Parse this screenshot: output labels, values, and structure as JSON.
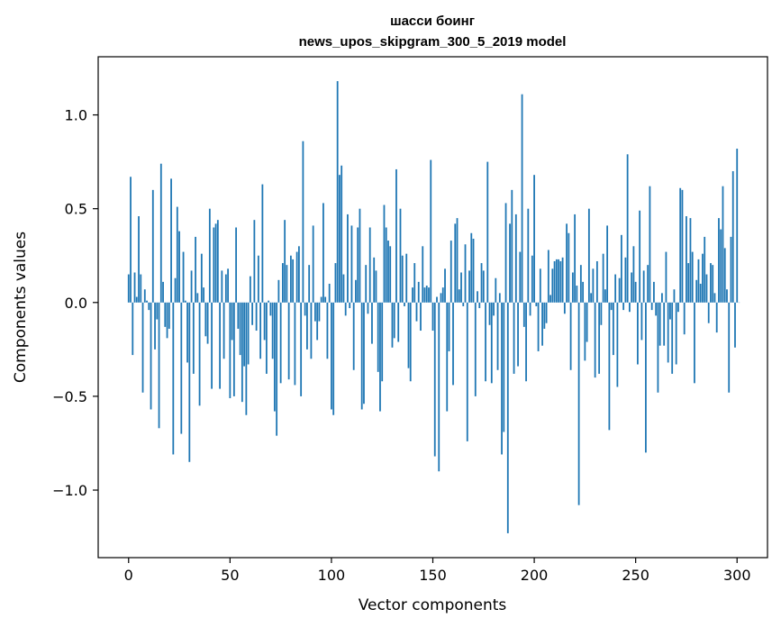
{
  "chart_data": {
    "type": "bar",
    "title_line1": "шасси боинг",
    "title_line2": "news_upos_skipgram_300_5_2019 model",
    "xlabel": "Vector components",
    "ylabel": "Components values",
    "xlim": [
      -15,
      315
    ],
    "ylim": [
      -1.36,
      1.31
    ],
    "xticks": [
      0,
      50,
      100,
      150,
      200,
      250,
      300
    ],
    "yticks": [
      -1.0,
      -0.5,
      0.0,
      0.5,
      1.0
    ],
    "xtick_labels": [
      "0",
      "50",
      "100",
      "150",
      "200",
      "250",
      "300"
    ],
    "ytick_labels": [
      "−1.0",
      "−0.5",
      "0.0",
      "0.5",
      "1.0"
    ],
    "bar_color": "#1f77b4",
    "values": [
      0.15,
      0.67,
      -0.28,
      0.16,
      0.03,
      0.46,
      0.15,
      -0.48,
      0.07,
      0.01,
      -0.04,
      -0.57,
      0.6,
      -0.25,
      -0.09,
      -0.67,
      0.74,
      0.11,
      -0.13,
      -0.19,
      -0.14,
      0.66,
      -0.81,
      0.13,
      0.51,
      0.38,
      -0.7,
      0.27,
      0.01,
      -0.32,
      -0.85,
      0.17,
      -0.38,
      0.35,
      0.05,
      -0.55,
      0.26,
      0.08,
      -0.18,
      -0.22,
      0.5,
      -0.46,
      0.4,
      0.42,
      0.44,
      -0.46,
      0.17,
      -0.3,
      0.15,
      0.18,
      -0.51,
      -0.2,
      -0.5,
      0.4,
      -0.14,
      -0.28,
      -0.53,
      -0.34,
      -0.6,
      -0.33,
      0.14,
      -0.12,
      0.44,
      -0.15,
      0.25,
      -0.3,
      0.63,
      -0.2,
      -0.38,
      0.01,
      -0.07,
      -0.3,
      -0.58,
      -0.71,
      0.12,
      -0.43,
      0.21,
      0.44,
      0.2,
      -0.41,
      0.25,
      0.23,
      -0.44,
      0.27,
      0.3,
      -0.5,
      0.86,
      -0.07,
      -0.25,
      0.2,
      -0.3,
      0.41,
      -0.1,
      -0.2,
      -0.1,
      0.03,
      0.53,
      0.03,
      -0.3,
      0.1,
      -0.57,
      -0.6,
      0.21,
      1.18,
      0.68,
      0.73,
      0.15,
      -0.07,
      0.47,
      -0.03,
      0.41,
      -0.36,
      0.12,
      0.4,
      0.5,
      -0.57,
      -0.54,
      0.2,
      -0.06,
      0.4,
      -0.22,
      0.24,
      0.17,
      -0.37,
      -0.58,
      -0.42,
      0.52,
      0.4,
      0.33,
      0.3,
      -0.24,
      -0.19,
      0.71,
      -0.21,
      0.5,
      0.25,
      -0.02,
      0.26,
      -0.35,
      -0.42,
      0.08,
      0.21,
      -0.1,
      0.11,
      -0.15,
      0.3,
      0.08,
      0.09,
      0.08,
      0.76,
      -0.15,
      -0.82,
      0.03,
      -0.9,
      0.05,
      0.08,
      0.18,
      -0.58,
      -0.26,
      0.33,
      -0.44,
      0.42,
      0.45,
      0.07,
      0.16,
      -0.02,
      0.31,
      -0.74,
      0.17,
      0.37,
      0.34,
      -0.5,
      0.06,
      -0.03,
      0.21,
      0.17,
      -0.42,
      0.75,
      -0.12,
      -0.43,
      -0.07,
      0.13,
      -0.36,
      0.05,
      -0.81,
      -0.69,
      0.53,
      -1.23,
      0.42,
      0.6,
      -0.38,
      0.47,
      -0.34,
      0.27,
      1.11,
      -0.13,
      -0.42,
      0.5,
      -0.07,
      0.25,
      0.68,
      -0.02,
      -0.26,
      0.18,
      -0.23,
      -0.14,
      -0.11,
      0.28,
      0.04,
      0.18,
      0.22,
      0.23,
      0.23,
      0.22,
      0.24,
      -0.06,
      0.42,
      0.37,
      -0.36,
      0.16,
      0.47,
      0.09,
      -1.08,
      0.2,
      0.11,
      -0.31,
      -0.21,
      0.5,
      0.05,
      0.18,
      -0.4,
      0.22,
      -0.38,
      -0.12,
      0.26,
      0.07,
      0.41,
      -0.68,
      -0.04,
      -0.28,
      0.15,
      -0.45,
      0.13,
      0.36,
      -0.04,
      0.24,
      0.79,
      -0.05,
      0.16,
      0.3,
      0.11,
      -0.33,
      0.49,
      -0.2,
      0.17,
      -0.8,
      0.2,
      0.62,
      -0.04,
      0.11,
      -0.07,
      -0.48,
      -0.23,
      0.05,
      -0.23,
      0.27,
      -0.32,
      -0.09,
      -0.38,
      0.07,
      -0.33,
      -0.05,
      0.61,
      0.6,
      -0.17,
      0.46,
      0.21,
      0.45,
      0.27,
      -0.43,
      0.12,
      0.23,
      0.1,
      0.26,
      0.35,
      0.15,
      -0.11,
      0.21,
      0.2,
      0.05,
      -0.16,
      0.45,
      0.39,
      0.62,
      0.29,
      0.07,
      -0.48,
      0.35,
      0.7,
      -0.24,
      0.82,
      0.0
    ]
  }
}
